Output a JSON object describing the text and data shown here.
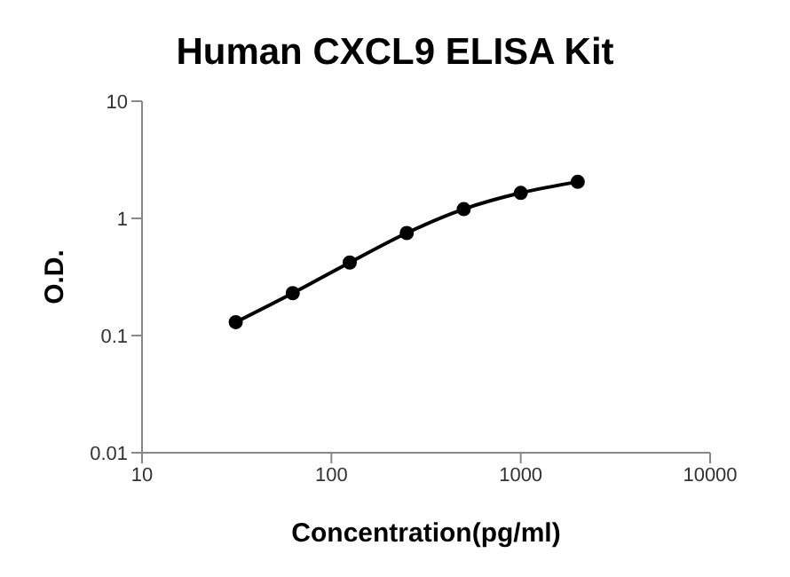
{
  "chart_data": {
    "type": "line",
    "title": "Human CXCL9 ELISA Kit",
    "xlabel": "Concentration(pg/ml)",
    "ylabel": "O.D.",
    "x": [
      31.25,
      62.5,
      125,
      250,
      500,
      1000,
      2000
    ],
    "series": [
      {
        "color": "#000000",
        "values": [
          0.13,
          0.23,
          0.42,
          0.75,
          1.2,
          1.65,
          2.05
        ]
      }
    ],
    "log": "xy",
    "xlim": [
      10,
      10000
    ],
    "xticks": [
      10,
      100,
      1000,
      10000
    ],
    "ylim": [
      0.01,
      10
    ],
    "yticks": [
      0.01,
      0.1,
      1,
      10
    ],
    "grid": false,
    "legend": false,
    "marker": "circle",
    "line_style": "solid"
  }
}
